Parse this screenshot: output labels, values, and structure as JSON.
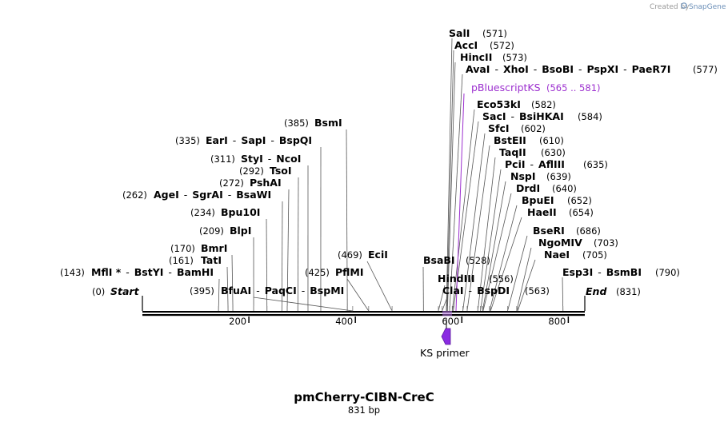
{
  "credit": {
    "prefix": "Created by",
    "brand": "SnapGene"
  },
  "map": {
    "name": "pmCherry-CIBN-CreC",
    "length_label": "831 bp",
    "length": 831,
    "ruler_ticks": [
      "200",
      "400",
      "600",
      "800"
    ],
    "ruler_tick_values": [
      200,
      400,
      600,
      800
    ],
    "ends": {
      "start": {
        "label": "Start",
        "pos": "(0)",
        "bp": 0
      },
      "end": {
        "label": "End",
        "pos": "(831)",
        "bp": 831
      }
    }
  },
  "sites": [
    {
      "label": "SalI",
      "pos": "(571)",
      "bp": 571
    },
    {
      "label": "AccI",
      "pos": "(572)",
      "bp": 572
    },
    {
      "label": "HincII",
      "pos": "(573)",
      "bp": 573
    },
    {
      "label": "AvaI - XhoI - BsoBI - PspXI - PaeR7I",
      "names": [
        "AvaI",
        "XhoI",
        "BsoBI",
        "PspXI",
        "PaeR7I"
      ],
      "pos": "(577)",
      "bp": 577
    },
    {
      "label": "Eco53kI",
      "pos": "(582)",
      "bp": 582
    },
    {
      "label": "SacI - BsiHKAI",
      "names": [
        "SacI",
        "BsiHKAI"
      ],
      "pos": "(584)",
      "bp": 584
    },
    {
      "label": "SfcI",
      "pos": "(602)",
      "bp": 602
    },
    {
      "label": "BstEII",
      "pos": "(610)",
      "bp": 610
    },
    {
      "label": "TaqII",
      "pos": "(630)",
      "bp": 630
    },
    {
      "label": "PciI - AflIII",
      "names": [
        "PciI",
        "AflIII"
      ],
      "pos": "(635)",
      "bp": 635
    },
    {
      "label": "NspI",
      "pos": "(639)",
      "bp": 639
    },
    {
      "label": "DrdI",
      "pos": "(640)",
      "bp": 640
    },
    {
      "label": "BpuEI",
      "pos": "(652)",
      "bp": 652
    },
    {
      "label": "HaeII",
      "pos": "(654)",
      "bp": 654
    },
    {
      "label": "BseRI",
      "pos": "(686)",
      "bp": 686
    },
    {
      "label": "NgoMIV",
      "pos": "(703)",
      "bp": 703
    },
    {
      "label": "NaeI",
      "pos": "(705)",
      "bp": 705
    },
    {
      "label": "Esp3I - BsmBI",
      "names": [
        "Esp3I",
        "BsmBI"
      ],
      "pos": "(790)",
      "bp": 790
    },
    {
      "label": "BsmI",
      "pos": "(385)",
      "bp": 385
    },
    {
      "label": "EarI - SapI - BspQI",
      "names": [
        "EarI",
        "SapI",
        "BspQI"
      ],
      "pos": "(335)",
      "bp": 335
    },
    {
      "label": "StyI - NcoI",
      "names": [
        "StyI",
        "NcoI"
      ],
      "pos": "(311)",
      "bp": 311
    },
    {
      "label": "TsoI",
      "pos": "(292)",
      "bp": 292
    },
    {
      "label": "PshAI",
      "pos": "(272)",
      "bp": 272
    },
    {
      "label": "AgeI - SgrAI - BsaWI",
      "names": [
        "AgeI",
        "SgrAI",
        "BsaWI"
      ],
      "pos": "(262)",
      "bp": 262
    },
    {
      "label": "Bpu10I",
      "pos": "(234)",
      "bp": 234
    },
    {
      "label": "BlpI",
      "pos": "(209)",
      "bp": 209
    },
    {
      "label": "BmrI",
      "pos": "(170)",
      "bp": 170
    },
    {
      "label": "TatI",
      "pos": "(161)",
      "bp": 161
    },
    {
      "label": "MflI * - BstYI - BamHI",
      "names": [
        "MflI *",
        "BstYI",
        "BamHI"
      ],
      "pos": "(143)",
      "bp": 143
    },
    {
      "label": "BfuAI - PaqCI - BspMI",
      "names": [
        "BfuAI",
        "PaqCI",
        "BspMI"
      ],
      "pos": "(395)",
      "bp": 395
    },
    {
      "label": "PflMI",
      "pos": "(425)",
      "bp": 425
    },
    {
      "label": "EciI",
      "pos": "(469)",
      "bp": 469
    },
    {
      "label": "BsaBI",
      "pos": "(528)",
      "bp": 528
    },
    {
      "label": "HindIII",
      "pos": "(556)",
      "bp": 556
    },
    {
      "label": "ClaI - BspDI",
      "names": [
        "ClaI",
        "BspDI"
      ],
      "pos": "(563)",
      "bp": 563
    }
  ],
  "features": [
    {
      "label": "pBluescriptKS",
      "range": "(565 .. 581)",
      "start_bp": 565,
      "end_bp": 581,
      "color": "#9c2fcf"
    }
  ],
  "primers": [
    {
      "label": "KS primer",
      "start_bp": 562,
      "end_bp": 581,
      "direction": "reverse",
      "color": "#8a2be2"
    }
  ]
}
